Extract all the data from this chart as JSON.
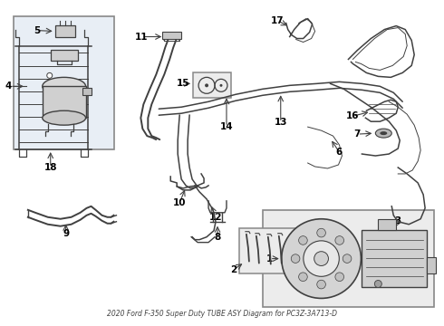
{
  "title": "2020 Ford F-350 Super Duty TUBE ASY Diagram for PC3Z-3A713-D",
  "bg_color": "#ffffff",
  "line_color": "#404040",
  "label_color": "#000000",
  "box_bg_left": "#e8eef5",
  "box_bg_right": "#ececec",
  "fig_bg": "#ffffff"
}
